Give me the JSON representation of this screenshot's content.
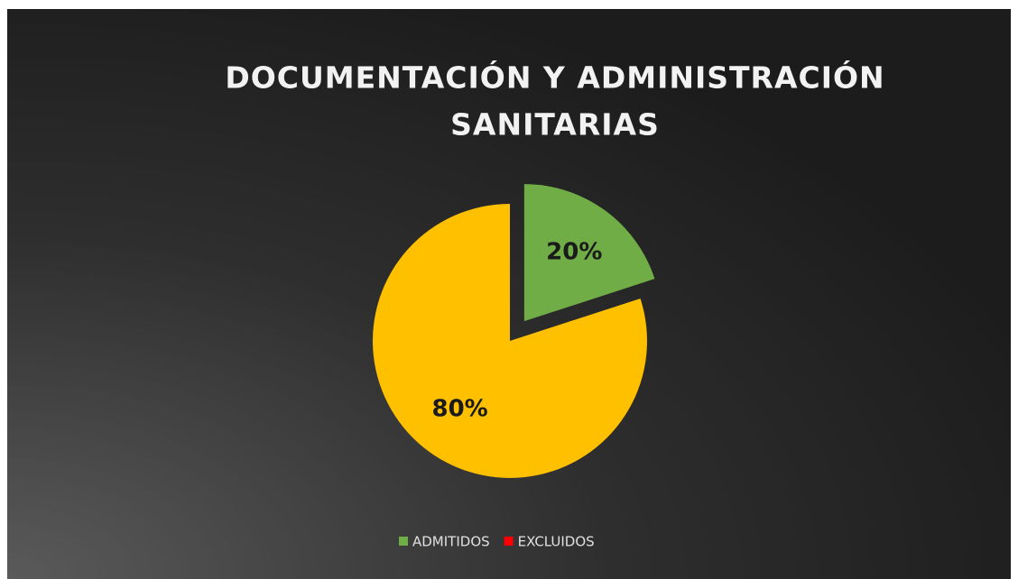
{
  "chart_data": {
    "type": "pie",
    "title": [
      "DOCUMENTACIÓN Y ADMINISTRACIÓN",
      "SANITARIAS"
    ],
    "categories": [
      "ADMITIDOS",
      "EXCLUIDOS"
    ],
    "values": [
      20,
      80
    ],
    "value_labels": [
      "20%",
      "80%"
    ],
    "colors": [
      "#70ad47",
      "#ffc000"
    ],
    "legend_colors": [
      "#70ad47",
      "#ff0000"
    ],
    "legend": "bottom"
  }
}
